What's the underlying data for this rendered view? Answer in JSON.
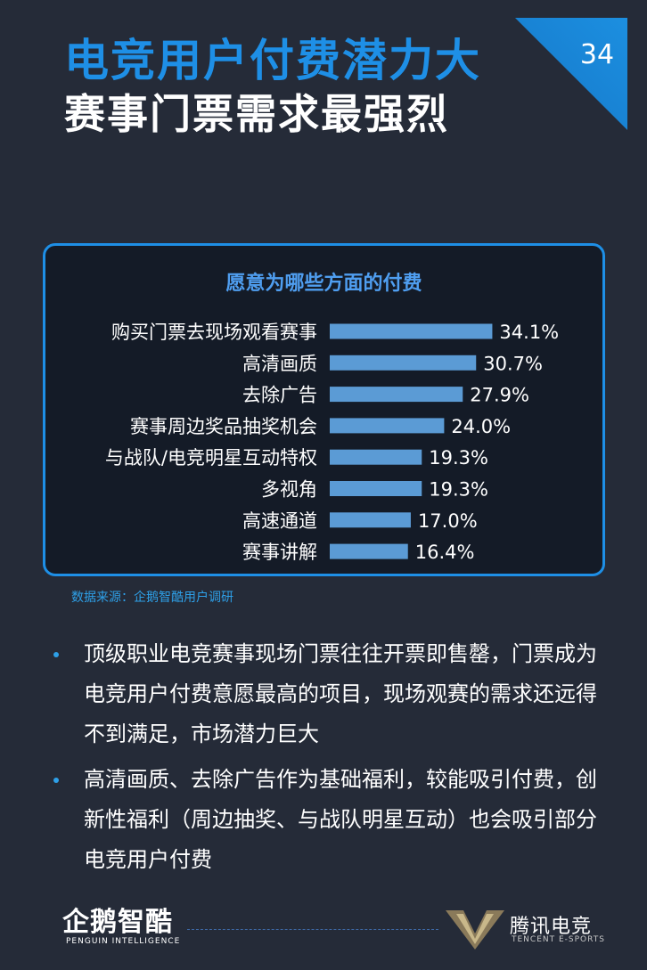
{
  "page_number": "34",
  "title_line1": "电竞用户付费潜力大",
  "title_line2": "赛事门票需求最强烈",
  "chart_data": {
    "type": "bar",
    "orientation": "horizontal",
    "title": "愿意为哪些方面的付费",
    "categories": [
      "购买门票去现场观看赛事",
      "高清画质",
      "去除广告",
      "赛事周边奖品抽奖机会",
      "与战队/电竞明星互动特权",
      "多视角",
      "高速通道",
      "赛事讲解"
    ],
    "values": [
      34.1,
      30.7,
      27.9,
      24.0,
      19.3,
      19.3,
      17.0,
      16.4
    ],
    "value_labels": [
      "34.1%",
      "30.7%",
      "27.9%",
      "24.0%",
      "19.3%",
      "19.3%",
      "17.0%",
      "16.4%"
    ],
    "bar_color": "#5b9bd5",
    "grid": false,
    "legend": "none"
  },
  "source": "数据来源：企鹅智酷用户调研",
  "bullets": [
    "顶级职业电竞赛事现场门票往往开票即售罄，门票成为电竞用户付费意愿最高的项目，现场观赛的需求还远得不到满足，市场潜力巨大",
    "高清画质、去除广告作为基础福利，较能吸引付费，创新性福利（周边抽奖、与战队明星互动）也会吸引部分电竞用户付费"
  ],
  "footer": {
    "left_logo_text": "企鹅智酷",
    "left_logo_sub": "PENGUIN INTELLIGENCE",
    "right_logo_text": "腾讯电竞",
    "right_logo_sub": "TENCENT E-SPORTS"
  },
  "colors": {
    "background": "#252b38",
    "accent": "#1e8fe6",
    "chart_background": "#141b27"
  }
}
